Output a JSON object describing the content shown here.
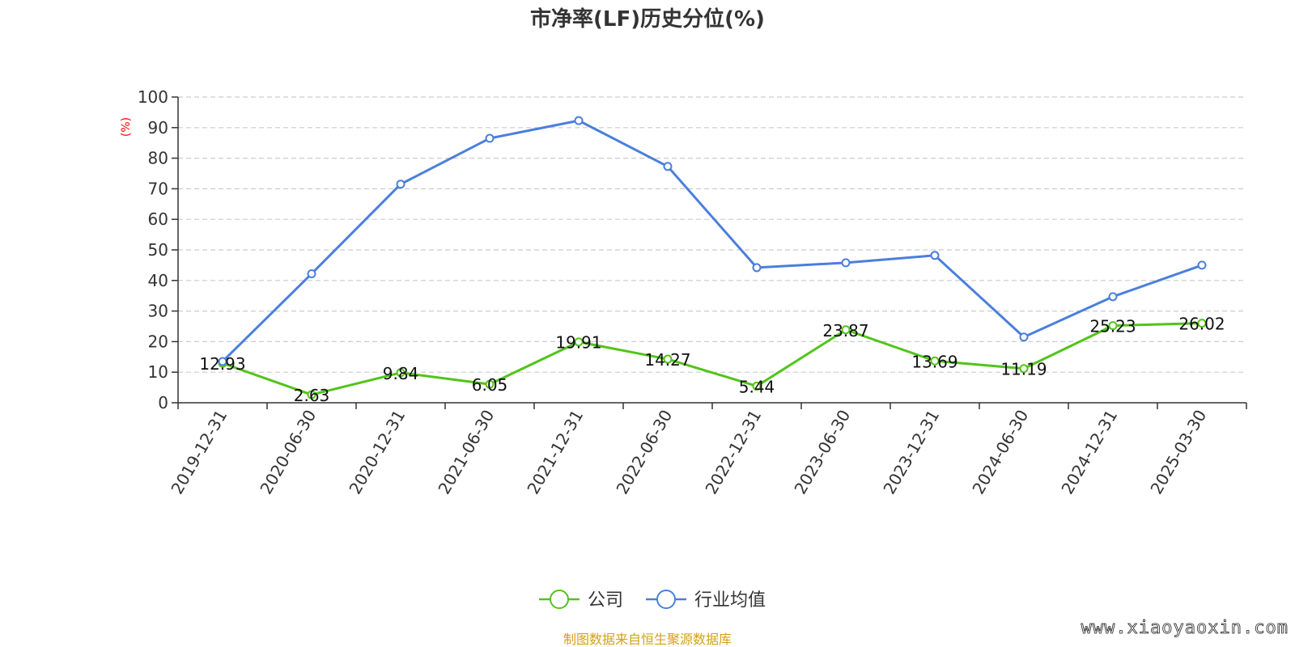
{
  "chart_data": {
    "type": "line",
    "title": "市净率(LF)历史分位(%)",
    "ylabel": "(%)",
    "ylim": [
      0,
      100
    ],
    "yticks": [
      0,
      10,
      20,
      30,
      40,
      50,
      60,
      70,
      80,
      90,
      100
    ],
    "grid": "horizontal-dashed",
    "legend_position": "bottom-center",
    "categories": [
      "2019-12-31",
      "2020-06-30",
      "2020-12-31",
      "2021-06-30",
      "2021-12-31",
      "2022-06-30",
      "2022-12-31",
      "2023-06-30",
      "2023-12-31",
      "2024-06-30",
      "2024-12-31",
      "2025-03-30"
    ],
    "series": [
      {
        "name": "公司",
        "color": "#52c41a",
        "show_labels": true,
        "values": [
          12.93,
          2.63,
          9.84,
          6.05,
          19.91,
          14.27,
          5.44,
          23.87,
          13.69,
          11.19,
          25.23,
          26.02
        ]
      },
      {
        "name": "行业均值",
        "color": "#4a7fdc",
        "show_labels": false,
        "values": [
          13.5,
          42.2,
          71.5,
          86.5,
          92.3,
          77.3,
          44.2,
          45.8,
          48.2,
          21.5,
          34.7,
          45.0
        ]
      }
    ]
  },
  "footer": {
    "source_text": "制图数据来自恒生聚源数据库",
    "source_color": "#d4a017",
    "watermark": "www.xiaoyaoxin.com"
  }
}
